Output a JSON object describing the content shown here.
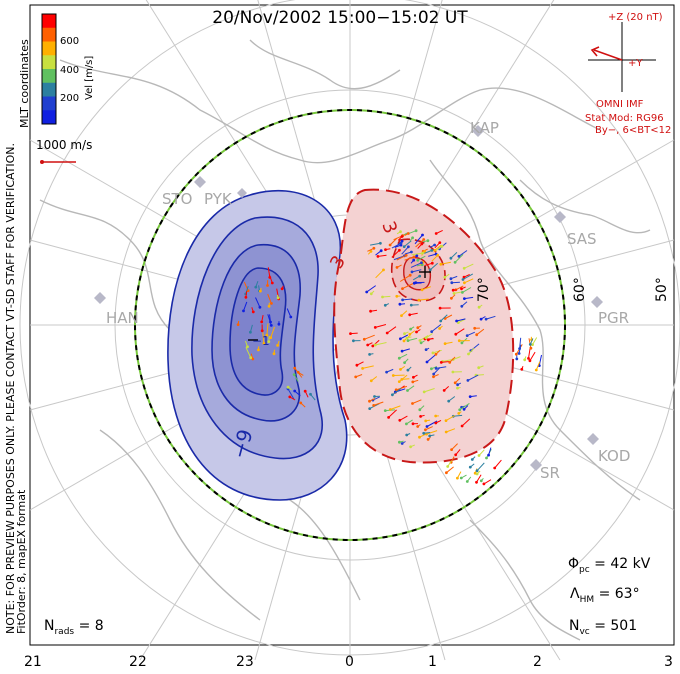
{
  "title": "20/Nov/2002 15:00−15:02 UT",
  "mlt_labels": [
    "21",
    "22",
    "23",
    "0",
    "1",
    "2",
    "3"
  ],
  "latitude_labels": [
    "50°",
    "60°",
    "70°"
  ],
  "stations": [
    "STO",
    "PYK",
    "KAP",
    "SAS",
    "PGR",
    "HAN",
    "KOD",
    "SR"
  ],
  "colorbar": {
    "label": "Vel [m/s]",
    "ticks": [
      "600",
      "400",
      "200"
    ],
    "colors": [
      "#ff0000",
      "#ff6000",
      "#ffb000",
      "#c8e040",
      "#60c060",
      "#2c80a0",
      "#2040d0",
      "#1020e0"
    ]
  },
  "vector_scale_label": "1000 m/s",
  "side_notes": {
    "coordinates": "MLT coordinates",
    "preview_note": "NOTE: FOR PREVIEW PURPOSES ONLY. PLEASE CONTACT VT-SD STAFF FOR VERIFICATION.",
    "fit_order": "FitOrder: 8, mapEX format"
  },
  "imf": {
    "z_label": "+Z (20 nT)",
    "y_label": "+Y",
    "source": "OMNI IMF",
    "model": "Stat Mod: RG96",
    "condition": "By−, 6<BT<12"
  },
  "stats": {
    "phi_symbol": "Φ",
    "phi_sub": "pc",
    "phi_value": "= 42 kV",
    "lambda_symbol": "Λ",
    "lambda_sub": "HM",
    "lambda_value": "= 63°",
    "nrads_symbol": "N",
    "nrads_sub": "rads",
    "nrads_value": "= 8",
    "nvc_symbol": "N",
    "nvc_sub": "vc",
    "nvc_value": "= 501"
  },
  "contour_labels": {
    "negative": "−9",
    "positive": "3",
    "negative_small": "−1"
  },
  "colors": {
    "negative_cell": "#1a2aa8",
    "positive_cell": "#c81818",
    "boundary": "#000000",
    "grid": "#c8c8c8",
    "coast": "#b8b8b8"
  }
}
